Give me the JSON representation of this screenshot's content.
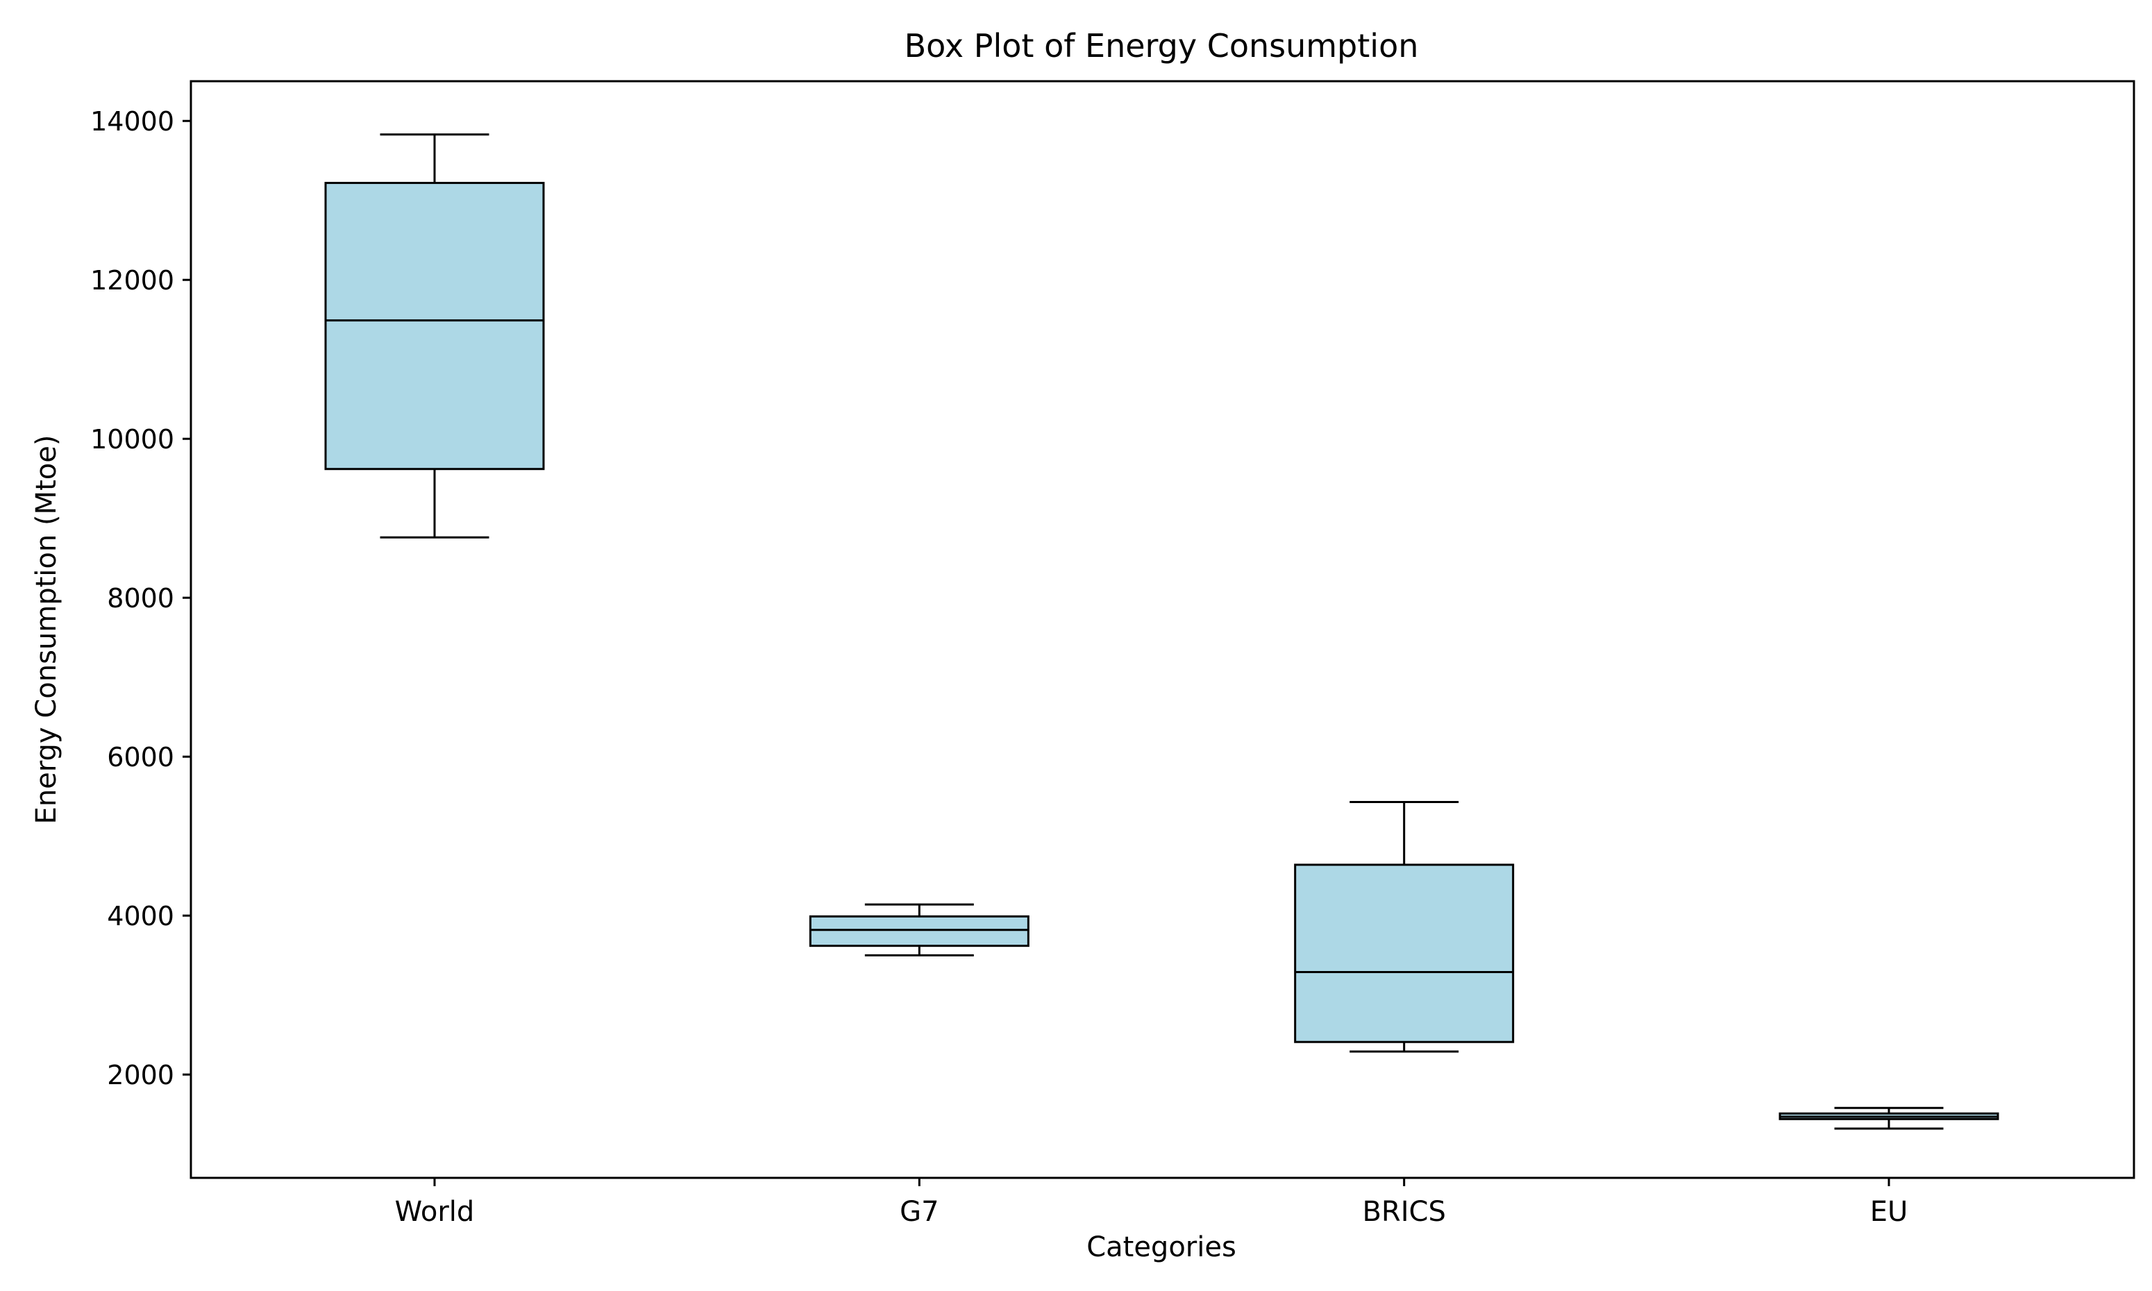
{
  "chart_data": {
    "type": "box",
    "title": "Box Plot of Energy Consumption",
    "xlabel": "Categories",
    "ylabel": "Energy Consumption (Mtoe)",
    "categories": [
      "World",
      "G7",
      "BRICS",
      "EU"
    ],
    "y_ticks": [
      2000,
      4000,
      6000,
      8000,
      10000,
      12000,
      14000
    ],
    "y_tick_labels": [
      "2000",
      "4000",
      "6000",
      "8000",
      "10000",
      "12000",
      "14000"
    ],
    "ylim": [
      700,
      14500
    ],
    "grid": false,
    "legend": null,
    "box_fill": "#add8e6",
    "line_color": "#000000",
    "boxes": [
      {
        "category": "World",
        "min": 8760,
        "q1": 9620,
        "median": 11490,
        "q3": 13220,
        "max": 13830
      },
      {
        "category": "G7",
        "min": 3500,
        "q1": 3620,
        "median": 3820,
        "q3": 3990,
        "max": 4140
      },
      {
        "category": "BRICS",
        "min": 2290,
        "q1": 2410,
        "median": 3290,
        "q3": 4640,
        "max": 5430
      },
      {
        "category": "EU",
        "min": 1320,
        "q1": 1440,
        "median": 1470,
        "q3": 1510,
        "max": 1580
      }
    ]
  }
}
